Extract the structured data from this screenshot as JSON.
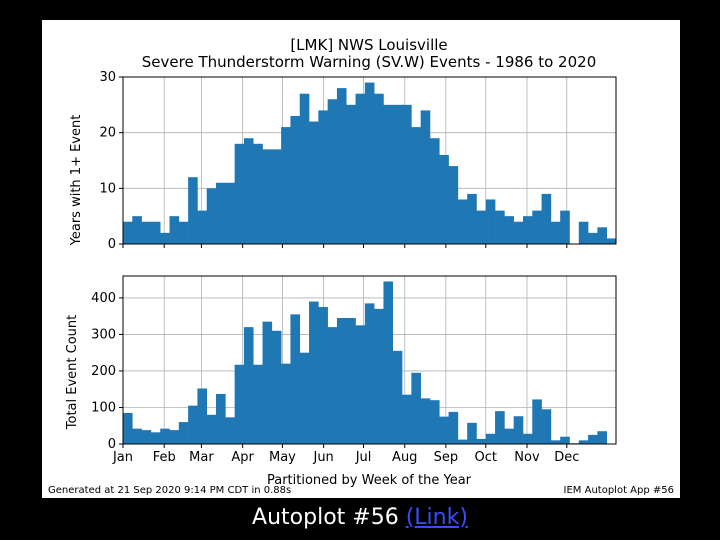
{
  "figure": {
    "title_line1": "[LMK] NWS Louisville",
    "title_line2": "Severe Thunderstorm Warning (SV.W) Events - 1986 to 2020",
    "footer_left": "Generated at 21 Sep 2020 9:14 PM CDT in 0.88s",
    "footer_right": "IEM Autoplot App #56"
  },
  "caption": {
    "text": "Autoplot #56",
    "link_label": "(Link)"
  },
  "colors": {
    "bar": "#1f77b4",
    "grid": "#b0b0b0",
    "background": "#000000"
  },
  "chart_data": [
    {
      "type": "bar",
      "ylabel": "Years with 1+ Event",
      "xlabel": "",
      "ylim": [
        0,
        30
      ],
      "yticks": [
        0,
        10,
        20,
        30
      ],
      "grid": true,
      "x_tick_labels": [
        "Jan",
        "Feb",
        "Mar",
        "Apr",
        "May",
        "Jun",
        "Jul",
        "Aug",
        "Sep",
        "Oct",
        "Nov",
        "Dec"
      ],
      "categories": [
        "1",
        "2",
        "3",
        "4",
        "5",
        "6",
        "7",
        "8",
        "9",
        "10",
        "11",
        "12",
        "13",
        "14",
        "15",
        "16",
        "17",
        "18",
        "19",
        "20",
        "21",
        "22",
        "23",
        "24",
        "25",
        "26",
        "27",
        "28",
        "29",
        "30",
        "31",
        "32",
        "33",
        "34",
        "35",
        "36",
        "37",
        "38",
        "39",
        "40",
        "41",
        "42",
        "43",
        "44",
        "45",
        "46",
        "47",
        "48",
        "49",
        "50",
        "51",
        "52",
        "53"
      ],
      "values": [
        4,
        5,
        4,
        4,
        2,
        5,
        4,
        12,
        6,
        10,
        11,
        11,
        18,
        19,
        18,
        17,
        17,
        21,
        23,
        27,
        22,
        24,
        26,
        28,
        25,
        27,
        29,
        27,
        25,
        25,
        25,
        21,
        24,
        19,
        16,
        14,
        8,
        9,
        6,
        8,
        6,
        5,
        4,
        5,
        6,
        9,
        4,
        6,
        0,
        4,
        2,
        3,
        1
      ]
    },
    {
      "type": "bar",
      "ylabel": "Total Event Count",
      "xlabel": "Partitioned by Week of the Year",
      "ylim": [
        0,
        460
      ],
      "yticks": [
        0,
        100,
        200,
        300,
        400
      ],
      "grid": true,
      "x_tick_labels": [
        "Jan",
        "Feb",
        "Mar",
        "Apr",
        "May",
        "Jun",
        "Jul",
        "Aug",
        "Sep",
        "Oct",
        "Nov",
        "Dec"
      ],
      "categories": [
        "1",
        "2",
        "3",
        "4",
        "5",
        "6",
        "7",
        "8",
        "9",
        "10",
        "11",
        "12",
        "13",
        "14",
        "15",
        "16",
        "17",
        "18",
        "19",
        "20",
        "21",
        "22",
        "23",
        "24",
        "25",
        "26",
        "27",
        "28",
        "29",
        "30",
        "31",
        "32",
        "33",
        "34",
        "35",
        "36",
        "37",
        "38",
        "39",
        "40",
        "41",
        "42",
        "43",
        "44",
        "45",
        "46",
        "47",
        "48",
        "49",
        "50",
        "51",
        "52",
        "53"
      ],
      "values": [
        85,
        42,
        38,
        32,
        42,
        38,
        60,
        105,
        152,
        80,
        137,
        73,
        217,
        320,
        217,
        335,
        310,
        220,
        355,
        250,
        390,
        375,
        320,
        345,
        345,
        325,
        385,
        370,
        445,
        255,
        135,
        195,
        125,
        120,
        75,
        88,
        12,
        58,
        14,
        28,
        90,
        42,
        76,
        28,
        122,
        95,
        10,
        20,
        2,
        10,
        25,
        35,
        0
      ]
    }
  ]
}
